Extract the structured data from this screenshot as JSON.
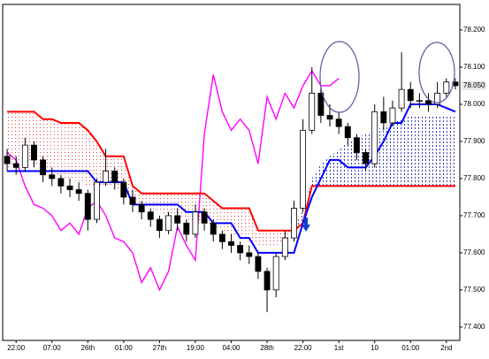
{
  "chart_data": {
    "type": "candlestick",
    "categories": [
      null,
      "22:00",
      null,
      null,
      null,
      "07:00",
      null,
      null,
      null,
      "26th",
      null,
      null,
      null,
      "01:00",
      null,
      null,
      null,
      "27th",
      null,
      null,
      null,
      "19:00",
      null,
      null,
      null,
      "04:00",
      null,
      null,
      null,
      "28th",
      null,
      null,
      null,
      "22:00",
      null,
      null,
      null,
      "1st",
      null,
      null,
      null,
      "10",
      null,
      null,
      null,
      "01:00",
      null,
      null,
      null,
      "2nd",
      null
    ],
    "ylim": [
      77.364,
      78.269
    ],
    "yticks": [
      {
        "value": 77.4,
        "label": "77.400"
      },
      {
        "value": 77.5,
        "label": "77.500"
      },
      {
        "value": 77.6,
        "label": "77.600"
      },
      {
        "value": 77.7,
        "label": "77.700"
      },
      {
        "value": 77.8,
        "label": "77.800"
      },
      {
        "value": 77.9,
        "label": "77.900"
      },
      {
        "value": 78.0,
        "label": "78.000"
      },
      {
        "value": 78.1,
        "label": "78.100"
      },
      {
        "value": 78.2,
        "label": "78.200"
      }
    ],
    "last_price": {
      "value": 78.05,
      "label": "78.050"
    },
    "candles": {
      "open": [
        77.86,
        77.84,
        77.83,
        77.89,
        77.85,
        77.81,
        77.8,
        77.78,
        77.77,
        77.76,
        77.69,
        77.79,
        77.82,
        77.79,
        77.75,
        77.73,
        77.71,
        77.69,
        77.66,
        77.7,
        77.68,
        77.65,
        77.71,
        77.68,
        77.65,
        77.63,
        77.62,
        77.6,
        77.59,
        77.55,
        77.5,
        77.59,
        77.64,
        77.72,
        77.93,
        78.03,
        77.97,
        77.96,
        77.94,
        77.91,
        77.87,
        77.84,
        77.98,
        77.95,
        77.99,
        78.04,
        78.01,
        78.01,
        78.0,
        78.03,
        78.06
      ],
      "high": [
        77.88,
        77.86,
        77.91,
        77.9,
        77.86,
        77.83,
        77.81,
        77.8,
        77.79,
        77.77,
        77.8,
        77.88,
        77.83,
        77.8,
        77.77,
        77.74,
        77.72,
        77.7,
        77.71,
        77.72,
        77.69,
        77.73,
        77.72,
        77.69,
        77.66,
        77.65,
        77.63,
        77.62,
        77.6,
        77.56,
        77.6,
        77.66,
        77.74,
        77.96,
        78.1,
        78.05,
        78.0,
        77.98,
        77.95,
        77.92,
        77.88,
        78.0,
        78.02,
        78.01,
        78.14,
        78.06,
        78.03,
        78.03,
        78.06,
        78.07,
        78.07
      ],
      "low": [
        77.82,
        77.81,
        77.82,
        77.83,
        77.79,
        77.78,
        77.76,
        77.75,
        77.74,
        77.66,
        77.68,
        77.78,
        77.77,
        77.73,
        77.71,
        77.69,
        77.67,
        77.64,
        77.65,
        77.66,
        77.63,
        77.64,
        77.66,
        77.63,
        77.61,
        77.6,
        77.58,
        77.57,
        77.53,
        77.44,
        77.48,
        77.58,
        77.63,
        77.71,
        77.92,
        77.95,
        77.94,
        77.92,
        77.89,
        77.85,
        77.82,
        77.83,
        77.93,
        77.94,
        77.98,
        77.99,
        77.99,
        77.98,
        77.99,
        78.02,
        78.04
      ],
      "close": [
        77.84,
        77.83,
        77.89,
        77.85,
        77.81,
        77.8,
        77.78,
        77.77,
        77.76,
        77.69,
        77.79,
        77.82,
        77.79,
        77.75,
        77.73,
        77.71,
        77.69,
        77.66,
        77.7,
        77.68,
        77.65,
        77.71,
        77.68,
        77.65,
        77.63,
        77.62,
        77.6,
        77.59,
        77.55,
        77.5,
        77.59,
        77.64,
        77.72,
        77.93,
        78.03,
        77.97,
        77.96,
        77.94,
        77.91,
        77.87,
        77.84,
        77.98,
        77.95,
        77.99,
        78.04,
        78.01,
        78.01,
        78.0,
        78.03,
        78.06,
        78.05
      ]
    },
    "span_b": {
      "color": "#ff0000",
      "values": [
        77.98,
        77.98,
        77.98,
        77.98,
        77.96,
        77.96,
        77.95,
        77.95,
        77.95,
        77.93,
        77.9,
        77.86,
        77.86,
        77.86,
        77.78,
        77.76,
        77.76,
        77.76,
        77.76,
        77.76,
        77.76,
        77.76,
        77.76,
        77.74,
        77.72,
        77.72,
        77.72,
        77.72,
        77.66,
        77.66,
        77.66,
        77.66,
        77.66,
        77.68,
        77.78,
        77.78,
        77.78,
        77.78,
        77.78,
        77.78,
        77.78,
        77.78,
        77.78,
        77.78,
        77.78,
        77.78,
        77.78,
        77.78,
        77.78,
        77.78,
        77.78
      ]
    },
    "span_a": {
      "values": [
        77.83,
        77.84,
        77.85,
        77.84,
        77.83,
        77.82,
        77.8,
        77.8,
        77.79,
        77.78,
        77.78,
        77.78,
        77.78,
        77.76,
        77.74,
        77.73,
        77.72,
        77.71,
        77.7,
        77.7,
        77.69,
        77.68,
        77.68,
        77.67,
        77.66,
        77.65,
        77.64,
        77.63,
        77.62,
        77.62,
        77.62,
        77.63,
        77.66,
        77.72,
        77.8,
        77.84,
        77.86,
        77.88,
        77.9,
        77.91,
        77.92,
        77.93,
        77.94,
        77.95,
        77.96,
        77.97,
        77.97,
        77.97,
        77.97,
        77.97,
        77.97
      ]
    },
    "kijun": {
      "color": "#0000ff",
      "values": [
        77.82,
        77.82,
        77.82,
        77.82,
        77.82,
        77.82,
        77.82,
        77.82,
        77.82,
        77.82,
        77.79,
        77.79,
        77.79,
        77.79,
        77.73,
        77.73,
        77.73,
        77.73,
        77.73,
        77.73,
        77.71,
        77.71,
        77.71,
        77.68,
        77.68,
        77.68,
        77.64,
        77.64,
        77.6,
        77.6,
        77.6,
        77.6,
        77.6,
        77.68,
        77.75,
        77.8,
        77.85,
        77.85,
        77.83,
        77.83,
        77.83,
        77.86,
        77.9,
        77.95,
        77.95,
        78.0,
        78.0,
        78.0,
        78.0,
        77.99,
        77.98
      ]
    },
    "chikou": {
      "color": "#ff00ff",
      "values": [
        77.87,
        77.85,
        77.78,
        77.73,
        77.72,
        77.7,
        77.66,
        77.68,
        77.65,
        77.72,
        77.74,
        77.7,
        77.64,
        77.63,
        77.6,
        77.52,
        77.56,
        77.5,
        77.55,
        77.67,
        77.62,
        77.58,
        77.92,
        78.08,
        77.98,
        77.93,
        77.96,
        77.93,
        77.84,
        78.02,
        77.96,
        78.03,
        77.99,
        78.05,
        78.09,
        78.05,
        78.05,
        78.07,
        null,
        null,
        null,
        null,
        null,
        null,
        null,
        null,
        null,
        null,
        null,
        null,
        null
      ]
    }
  }
}
